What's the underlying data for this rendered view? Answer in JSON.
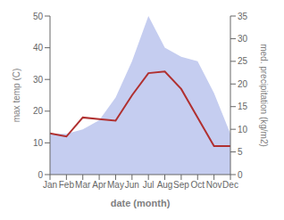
{
  "chart_data": {
    "type": "line",
    "xlabel": "date (month)",
    "ylabel": "max temp (C)",
    "y2label": "med. precipitation (kg/m2)",
    "categories": [
      "Jan",
      "Feb",
      "Mar",
      "Apr",
      "May",
      "Jun",
      "Jul",
      "Aug",
      "Sep",
      "Oct",
      "Nov",
      "Dec"
    ],
    "series": [
      {
        "type": "area",
        "color": "#c5cdf0",
        "axis": "y2",
        "values": [
          9.0,
          9.0,
          10.0,
          12.0,
          17.0,
          25.0,
          35.0,
          28.0,
          26.0,
          25.0,
          18.0,
          9.0
        ]
      },
      {
        "type": "line",
        "color": "#b03030",
        "values": [
          13.0,
          12.0,
          18.0,
          17.5,
          17.0,
          25.0,
          32.0,
          32.5,
          27.0,
          18.0,
          9.0,
          9.0
        ]
      }
    ],
    "ylim": [
      0,
      50
    ],
    "yticks": [
      0,
      10,
      20,
      30,
      40,
      50
    ],
    "y2lim": [
      0,
      35
    ],
    "y2ticks": [
      0,
      5,
      10,
      15,
      20,
      25,
      30,
      35
    ],
    "grid": false
  }
}
